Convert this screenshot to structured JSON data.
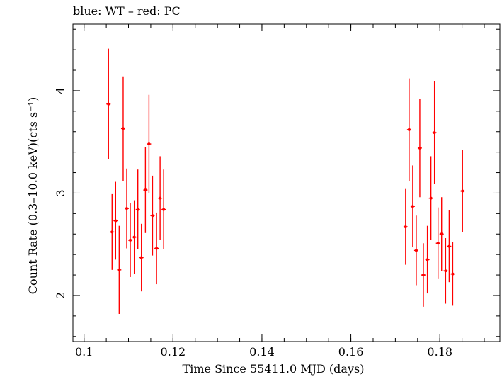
{
  "chart_data": {
    "type": "scatter",
    "title": "blue: WT – red: PC",
    "xlabel": "Time Since 55411.0 MJD (days)",
    "ylabel": "Count Rate (0.3–10.0 keV)(cts s⁻¹)",
    "xlim": [
      0.0975,
      0.1935
    ],
    "ylim": [
      1.55,
      4.65
    ],
    "x_ticks": [
      0.1,
      0.12,
      0.14,
      0.16,
      0.18
    ],
    "x_tick_labels": [
      "0.1",
      "0.12",
      "0.14",
      "0.16",
      "0.18"
    ],
    "y_ticks": [
      2,
      3,
      4
    ],
    "y_tick_labels": [
      "2",
      "3",
      "4"
    ],
    "grid": false,
    "series": [
      {
        "color": "#ff0000",
        "points": [
          {
            "x": 0.1055,
            "y": 3.87,
            "err": 0.54
          },
          {
            "x": 0.1063,
            "y": 2.62,
            "err": 0.37
          },
          {
            "x": 0.1071,
            "y": 2.73,
            "err": 0.38
          },
          {
            "x": 0.1079,
            "y": 2.25,
            "err": 0.43
          },
          {
            "x": 0.1088,
            "y": 3.63,
            "err": 0.51
          },
          {
            "x": 0.1096,
            "y": 2.85,
            "err": 0.39
          },
          {
            "x": 0.1104,
            "y": 2.54,
            "err": 0.36
          },
          {
            "x": 0.1113,
            "y": 2.57,
            "err": 0.36
          },
          {
            "x": 0.1121,
            "y": 2.84,
            "err": 0.39
          },
          {
            "x": 0.1129,
            "y": 2.37,
            "err": 0.33
          },
          {
            "x": 0.1138,
            "y": 3.03,
            "err": 0.42
          },
          {
            "x": 0.1146,
            "y": 3.48,
            "err": 0.48
          },
          {
            "x": 0.1154,
            "y": 2.78,
            "err": 0.39
          },
          {
            "x": 0.1163,
            "y": 2.46,
            "err": 0.35
          },
          {
            "x": 0.1171,
            "y": 2.95,
            "err": 0.41
          },
          {
            "x": 0.1179,
            "y": 2.84,
            "err": 0.39
          },
          {
            "x": 0.1723,
            "y": 2.67,
            "err": 0.37
          },
          {
            "x": 0.1731,
            "y": 3.62,
            "err": 0.5
          },
          {
            "x": 0.1739,
            "y": 2.87,
            "err": 0.4
          },
          {
            "x": 0.1747,
            "y": 2.44,
            "err": 0.34
          },
          {
            "x": 0.1755,
            "y": 3.44,
            "err": 0.48
          },
          {
            "x": 0.1763,
            "y": 2.2,
            "err": 0.31
          },
          {
            "x": 0.1772,
            "y": 2.35,
            "err": 0.33
          },
          {
            "x": 0.178,
            "y": 2.95,
            "err": 0.41
          },
          {
            "x": 0.1788,
            "y": 3.59,
            "err": 0.5
          },
          {
            "x": 0.1796,
            "y": 2.51,
            "err": 0.35
          },
          {
            "x": 0.1804,
            "y": 2.6,
            "err": 0.36
          },
          {
            "x": 0.1813,
            "y": 2.24,
            "err": 0.32
          },
          {
            "x": 0.1821,
            "y": 2.48,
            "err": 0.35
          },
          {
            "x": 0.1829,
            "y": 2.21,
            "err": 0.31
          },
          {
            "x": 0.1851,
            "y": 3.02,
            "err": 0.4
          }
        ]
      }
    ]
  }
}
